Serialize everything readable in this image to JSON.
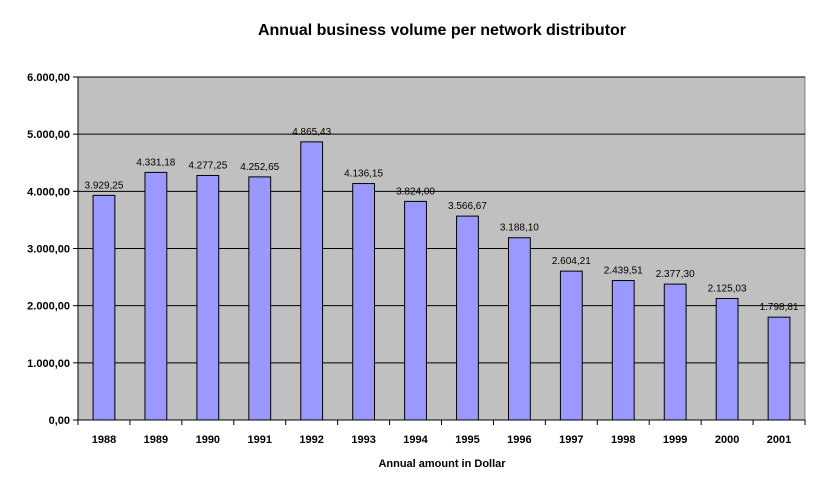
{
  "chart_data": {
    "type": "bar",
    "title": "Annual business volume per network distributor",
    "xlabel": "Annual amount in Dollar",
    "ylabel": "",
    "categories": [
      "1988",
      "1989",
      "1990",
      "1991",
      "1992",
      "1993",
      "1994",
      "1995",
      "1996",
      "1997",
      "1998",
      "1999",
      "2000",
      "2001"
    ],
    "values": [
      3929.25,
      4331.18,
      4277.25,
      4252.65,
      4865.43,
      4136.15,
      3824.0,
      3566.67,
      3188.1,
      2604.21,
      2439.51,
      2377.3,
      2125.03,
      1798.81
    ],
    "value_labels": [
      "3.929,25",
      "4.331,18",
      "4.277,25",
      "4.252,65",
      "4.865,43",
      "4.136,15",
      "3.824,00",
      "3.566,67",
      "3.188,10",
      "2.604,21",
      "2.439,51",
      "2.377,30",
      "2.125,03",
      "1.798,81"
    ],
    "ylim": [
      0,
      6000
    ],
    "y_ticks": [
      0,
      1000,
      2000,
      3000,
      4000,
      5000,
      6000
    ],
    "y_tick_labels": [
      "0,00",
      "1.000,00",
      "2.000,00",
      "3.000,00",
      "4.000,00",
      "5.000,00",
      "6.000,00"
    ],
    "grid": true,
    "legend": "none",
    "colors": {
      "plot_background": "#c0c0c0",
      "bar_fill": "#9999ff",
      "bar_stroke": "#000000",
      "grid": "#000000"
    }
  }
}
